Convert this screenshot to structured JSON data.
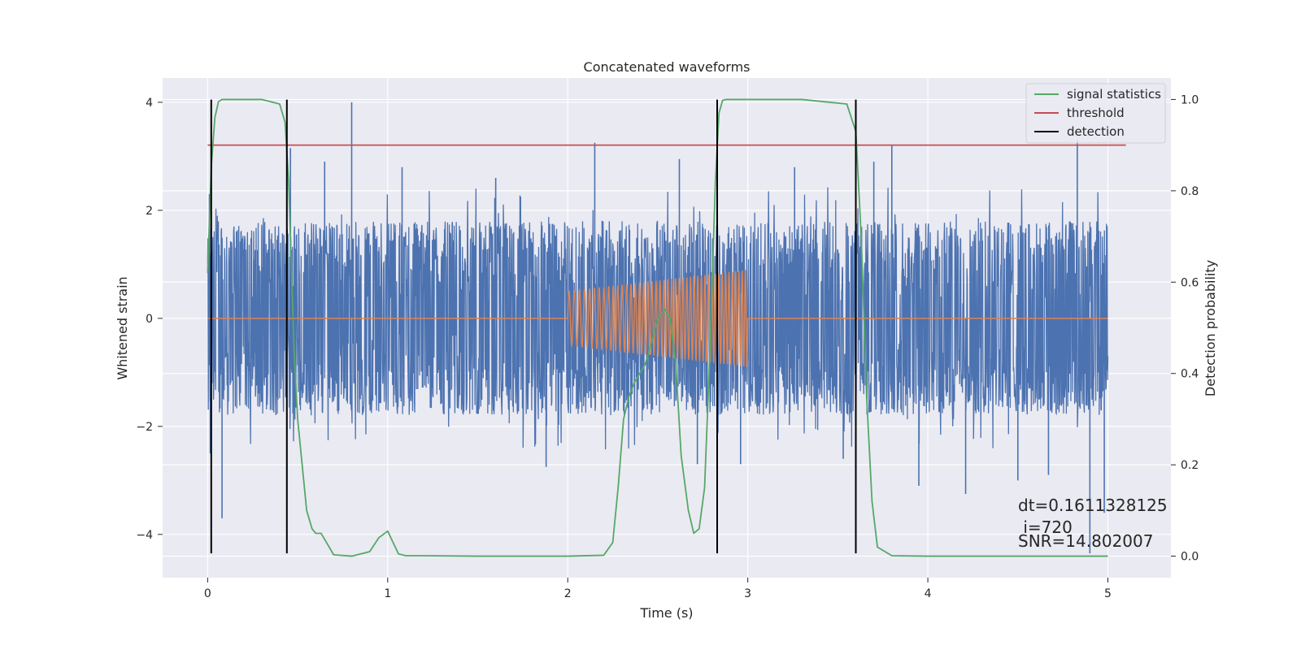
{
  "chart_data": {
    "type": "line",
    "title": "Concatenated waveforms",
    "xlabel": "Time (s)",
    "ylabel_left": "Whitened strain",
    "ylabel_right": "Detection probability",
    "xlim": [
      -0.25,
      5.35
    ],
    "ylim_left": [
      -4.8,
      4.45
    ],
    "ylim_right": [
      -0.047,
      1.047
    ],
    "x_ticks": [
      0,
      1,
      2,
      3,
      4,
      5
    ],
    "y_ticks_left": [
      -4,
      -2,
      0,
      2,
      4
    ],
    "y_ticks_right": [
      0.0,
      0.2,
      0.4,
      0.6,
      0.8,
      1.0
    ],
    "grid": true,
    "legend_placement": "top-right",
    "legend": [
      "signal statistics",
      "threshold",
      "detection"
    ],
    "colors": {
      "background": "#eaeaf2",
      "grid": "#ffffff",
      "strain": "#4c72b0",
      "template": "#dd8452",
      "signal_statistics": "#55a868",
      "threshold": "#c44e52",
      "detection": "#000000"
    },
    "series": [
      {
        "name": "",
        "role": "whitened strain noise (dense, approx. amplitude)",
        "axis": "left",
        "x": [
          0.0,
          0.5,
          1.0,
          1.5,
          2.0,
          2.5,
          3.0,
          3.5,
          4.0,
          4.5,
          5.0
        ],
        "envelope_upper": [
          1.8,
          1.8,
          1.8,
          1.8,
          1.8,
          1.8,
          1.8,
          1.8,
          1.8,
          1.8,
          1.8
        ],
        "envelope_lower": [
          -1.8,
          -1.8,
          -1.8,
          -1.8,
          -1.8,
          -1.8,
          -1.8,
          -1.8,
          -1.8,
          -1.8,
          -1.8
        ],
        "spikes": [
          {
            "x": 0.01,
            "y": 2.3
          },
          {
            "x": 0.015,
            "y": -2.5
          },
          {
            "x": 0.08,
            "y": -3.7
          },
          {
            "x": 0.44,
            "y": -3.45
          },
          {
            "x": 0.46,
            "y": 3.15
          },
          {
            "x": 0.65,
            "y": 2.9
          },
          {
            "x": 0.8,
            "y": 4.0
          },
          {
            "x": 1.08,
            "y": 2.8
          },
          {
            "x": 1.6,
            "y": 2.6
          },
          {
            "x": 1.88,
            "y": -2.75
          },
          {
            "x": 2.15,
            "y": 3.25
          },
          {
            "x": 2.62,
            "y": 2.95
          },
          {
            "x": 2.72,
            "y": -2.7
          },
          {
            "x": 2.96,
            "y": -2.7
          },
          {
            "x": 3.26,
            "y": 2.8
          },
          {
            "x": 3.53,
            "y": -2.6
          },
          {
            "x": 3.7,
            "y": 2.9
          },
          {
            "x": 3.8,
            "y": 3.2
          },
          {
            "x": 3.95,
            "y": -3.1
          },
          {
            "x": 4.21,
            "y": -3.25
          },
          {
            "x": 4.5,
            "y": -3.0
          },
          {
            "x": 4.67,
            "y": -2.9
          },
          {
            "x": 4.83,
            "y": 3.3
          },
          {
            "x": 4.9,
            "y": -4.35
          },
          {
            "x": 4.98,
            "y": -3.6
          }
        ]
      },
      {
        "name": "",
        "role": "injected waveform template",
        "axis": "left",
        "chirp_start": 2.0,
        "chirp_end": 3.0,
        "amplitude_start": 0.5,
        "amplitude_end": 0.9,
        "cycles": 45,
        "baseline_range": [
          0.0,
          5.0
        ]
      },
      {
        "name": "signal statistics",
        "axis": "right",
        "x": [
          0.0,
          0.02,
          0.04,
          0.06,
          0.08,
          0.1,
          0.2,
          0.3,
          0.4,
          0.43,
          0.45,
          0.48,
          0.5,
          0.53,
          0.55,
          0.58,
          0.6,
          0.63,
          0.66,
          0.7,
          0.8,
          0.9,
          0.95,
          1.0,
          1.03,
          1.06,
          1.1,
          1.2,
          1.5,
          2.0,
          2.2,
          2.25,
          2.28,
          2.31,
          2.34,
          2.37,
          2.4,
          2.43,
          2.46,
          2.5,
          2.54,
          2.57,
          2.6,
          2.63,
          2.67,
          2.7,
          2.73,
          2.76,
          2.79,
          2.82,
          2.84,
          2.86,
          2.88,
          2.9,
          3.0,
          3.3,
          3.55,
          3.6,
          3.63,
          3.66,
          3.69,
          3.72,
          3.8,
          4.0,
          4.5,
          5.0
        ],
        "y": [
          0.62,
          0.85,
          0.96,
          0.995,
          1.0,
          1.0,
          1.0,
          1.0,
          0.99,
          0.95,
          0.82,
          0.45,
          0.3,
          0.18,
          0.1,
          0.06,
          0.05,
          0.05,
          0.03,
          0.003,
          0.0,
          0.01,
          0.04,
          0.055,
          0.03,
          0.005,
          0.001,
          0.001,
          0.0,
          0.0,
          0.002,
          0.03,
          0.15,
          0.3,
          0.35,
          0.38,
          0.4,
          0.42,
          0.46,
          0.52,
          0.54,
          0.52,
          0.42,
          0.22,
          0.1,
          0.05,
          0.06,
          0.15,
          0.45,
          0.82,
          0.97,
          0.998,
          1.0,
          1.0,
          1.0,
          1.0,
          0.99,
          0.93,
          0.7,
          0.35,
          0.12,
          0.02,
          0.001,
          0.0,
          0.0,
          0.0
        ]
      },
      {
        "name": "threshold",
        "axis": "right",
        "x": [
          0.0,
          5.1
        ],
        "y": [
          0.9,
          0.9
        ]
      },
      {
        "name": "detection",
        "axis": "left",
        "x": [
          0.02,
          0.44,
          2.83,
          3.6
        ],
        "y_range": [
          -4.35,
          4.05
        ]
      }
    ],
    "annotation": {
      "line1": "dt=0.1611328125",
      "line2": " i=720",
      "line3": "SNR=14.802007"
    }
  }
}
